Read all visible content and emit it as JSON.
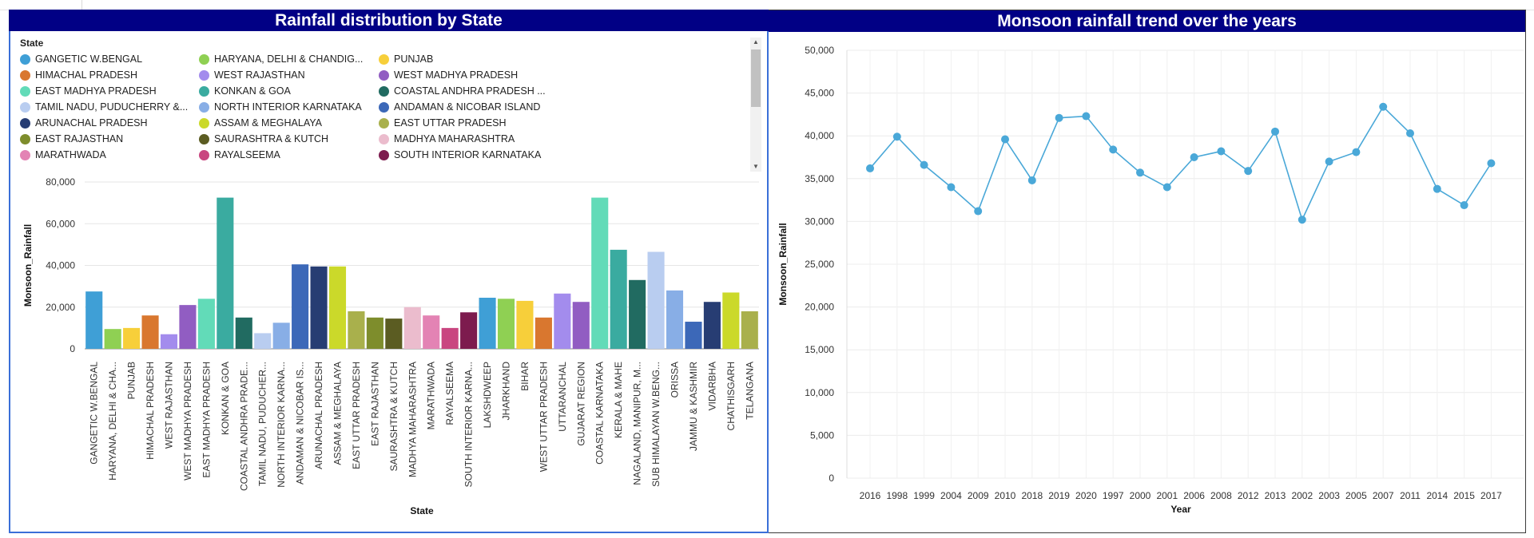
{
  "left_title": "Rainfall distribution by State",
  "right_title": "Monsoon rainfall trend over the years",
  "legend_title": "State",
  "legend_items": [
    {
      "label": "GANGETIC W.BENGAL",
      "color": "#3f9fd6"
    },
    {
      "label": "HARYANA, DELHI & CHANDIG...",
      "color": "#8fd053"
    },
    {
      "label": "PUNJAB",
      "color": "#f7cf3a"
    },
    {
      "label": "HIMACHAL PRADESH",
      "color": "#d9772f"
    },
    {
      "label": "WEST RAJASTHAN",
      "color": "#a38ced"
    },
    {
      "label": "WEST MADHYA PRADESH",
      "color": "#915dc2"
    },
    {
      "label": "EAST MADHYA PRADESH",
      "color": "#62dbb8"
    },
    {
      "label": "KONKAN & GOA",
      "color": "#3aaba0"
    },
    {
      "label": "COASTAL ANDHRA PRADESH ...",
      "color": "#216b61"
    },
    {
      "label": "TAMIL NADU, PUDUCHERRY &...",
      "color": "#b9cdf0"
    },
    {
      "label": "NORTH INTERIOR KARNATAKA",
      "color": "#88aee6"
    },
    {
      "label": "ANDAMAN & NICOBAR ISLAND",
      "color": "#3c68b8"
    },
    {
      "label": "ARUNACHAL PRADESH",
      "color": "#273d73"
    },
    {
      "label": "ASSAM & MEGHALAYA",
      "color": "#cbd92a"
    },
    {
      "label": "EAST UTTAR PRADESH",
      "color": "#a9b04c"
    },
    {
      "label": "EAST RAJASTHAN",
      "color": "#7e8d2c"
    },
    {
      "label": "SAURASHTRA & KUTCH",
      "color": "#5b5c22"
    },
    {
      "label": "MADHYA MAHARASHTRA",
      "color": "#ebbccd"
    },
    {
      "label": "MARATHWADA",
      "color": "#e383b4"
    },
    {
      "label": "RAYALSEEMA",
      "color": "#c94680"
    },
    {
      "label": "SOUTH INTERIOR KARNATAKA",
      "color": "#7d1b4e"
    }
  ],
  "chart_data": [
    {
      "type": "bar",
      "xlabel": "State",
      "ylabel": "Monsoon_Rainfall",
      "ylim": [
        0,
        80000
      ],
      "yticks": [
        "0",
        "20,000",
        "40,000",
        "60,000",
        "80,000"
      ],
      "categories": [
        "GANGETIC W.BENGAL",
        "HARYANA, DELHI & CHA...",
        "PUNJAB",
        "HIMACHAL PRADESH",
        "WEST RAJASTHAN",
        "WEST MADHYA PRADESH",
        "EAST MADHYA PRADESH",
        "KONKAN & GOA",
        "COASTAL ANDHRA PRADE...",
        "TAMIL NADU, PUDUCHER...",
        "NORTH INTERIOR KARNA...",
        "ANDAMAN & NICOBAR IS...",
        "ARUNACHAL PRADESH",
        "ASSAM & MEGHALAYA",
        "EAST UTTAR PRADESH",
        "EAST RAJASTHAN",
        "SAURASHTRA & KUTCH",
        "MADHYA MAHARASHTRA",
        "MARATHWADA",
        "RAYALSEEMA",
        "SOUTH INTERIOR KARNA...",
        "LAKSHDWEEP",
        "JHARKHAND",
        "BIHAR",
        "WEST UTTAR PRADESH",
        "UTTARANCHAL",
        "GUJARAT REGION",
        "COASTAL KARNATAKA",
        "KERALA & MAHE",
        "NAGALAND, MANIPUR, M...",
        "SUB HIMALAYAN W.BENG...",
        "ORISSA",
        "JAMMU & KASHMIR",
        "VIDARBHA",
        "CHATHISGARH",
        "TELANGANA"
      ],
      "values": [
        27500,
        9500,
        10000,
        16000,
        7000,
        21000,
        24000,
        72500,
        15000,
        7500,
        12500,
        40500,
        39500,
        39500,
        18000,
        15000,
        14500,
        20000,
        16000,
        10000,
        17500,
        24500,
        24000,
        23000,
        15000,
        26500,
        22500,
        72500,
        47500,
        33000,
        46500,
        28000,
        13000,
        22500,
        27000,
        18000
      ],
      "colors": [
        "#3f9fd6",
        "#8fd053",
        "#f7cf3a",
        "#d9772f",
        "#a38ced",
        "#915dc2",
        "#62dbb8",
        "#3aaba0",
        "#216b61",
        "#b9cdf0",
        "#88aee6",
        "#3c68b8",
        "#273d73",
        "#cbd92a",
        "#a9b04c",
        "#7e8d2c",
        "#5b5c22",
        "#ebbccd",
        "#e383b4",
        "#c94680",
        "#7d1b4e",
        "#3f9fd6",
        "#8fd053",
        "#f7cf3a",
        "#d9772f",
        "#a38ced",
        "#915dc2",
        "#62dbb8",
        "#3aaba0",
        "#216b61",
        "#b9cdf0",
        "#88aee6",
        "#3c68b8",
        "#273d73",
        "#cbd92a",
        "#a9b04c"
      ]
    },
    {
      "type": "line",
      "xlabel": "Year",
      "ylabel": "Monsoon_Rainfall",
      "ylim": [
        0,
        50000
      ],
      "yticks": [
        "0",
        "5,000",
        "10,000",
        "15,000",
        "20,000",
        "25,000",
        "30,000",
        "35,000",
        "40,000",
        "45,000",
        "50,000"
      ],
      "x": [
        "2016",
        "1998",
        "1999",
        "2004",
        "2009",
        "2010",
        "2018",
        "2019",
        "2020",
        "1997",
        "2000",
        "2001",
        "2006",
        "2008",
        "2012",
        "2013",
        "2002",
        "2003",
        "2005",
        "2007",
        "2011",
        "2014",
        "2015",
        "2017"
      ],
      "values": [
        36200,
        39900,
        36600,
        34000,
        31200,
        39600,
        34800,
        42100,
        42300,
        38400,
        35700,
        34000,
        37500,
        38200,
        35900,
        40500,
        30200,
        37000,
        38100,
        43400,
        40300,
        33800,
        31900,
        36800
      ],
      "color": "#4aa8d8"
    }
  ]
}
